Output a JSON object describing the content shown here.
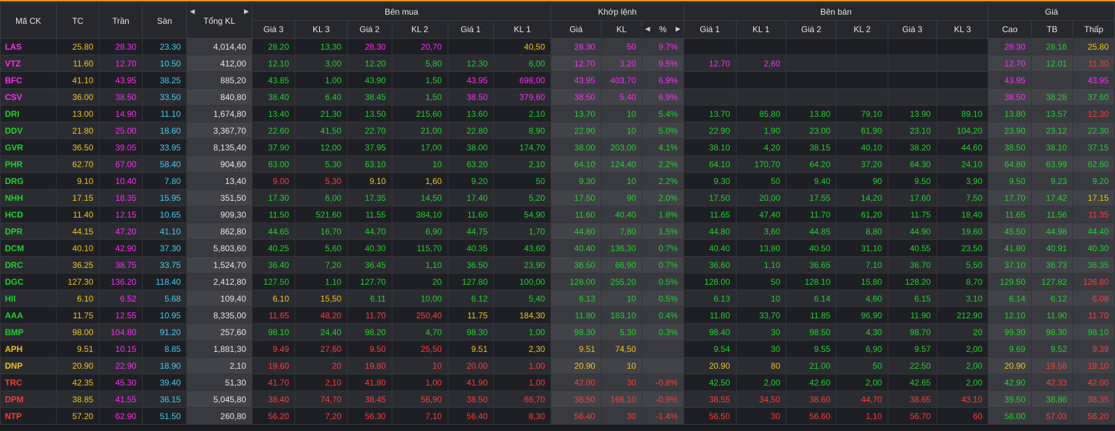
{
  "headers": {
    "symbol": "Mã CK",
    "ref": "TC",
    "ceil": "Trần",
    "floor": "Sàn",
    "total_vol": "Tổng KL",
    "buy_group": "Bên mua",
    "match_group": "Khớp lệnh",
    "sell_group": "Bên bán",
    "price_group": "Giá",
    "buy": [
      "Giá 3",
      "KL 3",
      "Giá 2",
      "KL 2",
      "Giá 1",
      "KL 1"
    ],
    "match": [
      "Giá",
      "KL",
      "%"
    ],
    "sell": [
      "Giá 1",
      "KL 1",
      "Giá 2",
      "KL 2",
      "Giá 3",
      "KL 3"
    ],
    "price": [
      "Cao",
      "TB",
      "Thấp"
    ]
  },
  "colors": {
    "ref": "#f0c419",
    "ceil": "#ff2bf6",
    "floor": "#3fd0f0",
    "up": "#21d12d",
    "down": "#ff3b3b",
    "accent": "#f0931e"
  },
  "rows": [
    {
      "s": "LAS",
      "c": "ceil",
      "v": [
        "25.80",
        "28.30",
        "23.30",
        "4,014,40",
        "28.20",
        "13,30",
        "28.30",
        "20,70",
        "",
        "40,50",
        "28.30",
        "50",
        "9.7%",
        "",
        "",
        "",
        "",
        "",
        "",
        "28.30",
        "28.16",
        "25.80"
      ],
      "k": [
        "ref",
        "ceil",
        "floor",
        "",
        "up",
        "up",
        "ceil",
        "ceil",
        "",
        "ref",
        "ceil",
        "ceil",
        "ceil",
        "",
        "",
        "",
        "",
        "",
        "",
        "ceil",
        "up",
        "ref"
      ]
    },
    {
      "s": "VTZ",
      "c": "ceil",
      "v": [
        "11.60",
        "12.70",
        "10.50",
        "412,00",
        "12.10",
        "3,00",
        "12.20",
        "5,80",
        "12.30",
        "6,00",
        "12.70",
        "3,20",
        "9.5%",
        "12.70",
        "2,60",
        "",
        "",
        "",
        "",
        "12.70",
        "12.01",
        "11.30"
      ],
      "k": [
        "ref",
        "ceil",
        "floor",
        "",
        "up",
        "up",
        "up",
        "up",
        "up",
        "up",
        "ceil",
        "ceil",
        "ceil",
        "ceil",
        "ceil",
        "",
        "",
        "",
        "",
        "ceil",
        "up",
        "down"
      ]
    },
    {
      "s": "BFC",
      "c": "ceil",
      "v": [
        "41.10",
        "43.95",
        "38.25",
        "885,20",
        "43.85",
        "1,00",
        "43.90",
        "1,50",
        "43.95",
        "698,00",
        "43.95",
        "403,70",
        "6.9%",
        "",
        "",
        "",
        "",
        "",
        "",
        "43.95",
        "",
        "43.95"
      ],
      "k": [
        "ref",
        "ceil",
        "floor",
        "",
        "up",
        "up",
        "up",
        "up",
        "ceil",
        "ceil",
        "ceil",
        "ceil",
        "ceil",
        "",
        "",
        "",
        "",
        "",
        "",
        "ceil",
        "",
        "ceil"
      ]
    },
    {
      "s": "CSV",
      "c": "ceil",
      "v": [
        "36.00",
        "38.50",
        "33.50",
        "840,80",
        "38.40",
        "6,40",
        "38.45",
        "1,50",
        "38.50",
        "379,60",
        "38.50",
        "5,40",
        "6.9%",
        "",
        "",
        "",
        "",
        "",
        "",
        "38.50",
        "38.28",
        "37.60"
      ],
      "k": [
        "ref",
        "ceil",
        "floor",
        "",
        "up",
        "up",
        "up",
        "up",
        "ceil",
        "ceil",
        "ceil",
        "ceil",
        "ceil",
        "",
        "",
        "",
        "",
        "",
        "",
        "ceil",
        "up",
        "up"
      ]
    },
    {
      "s": "DRI",
      "c": "up",
      "v": [
        "13.00",
        "14.90",
        "11.10",
        "1,674,80",
        "13.40",
        "21,30",
        "13.50",
        "215,60",
        "13.60",
        "2,10",
        "13.70",
        "10",
        "5.4%",
        "13.70",
        "85,80",
        "13.80",
        "79,10",
        "13.90",
        "89,10",
        "13.80",
        "13.57",
        "12.30"
      ],
      "k": [
        "ref",
        "ceil",
        "floor",
        "",
        "up",
        "up",
        "up",
        "up",
        "up",
        "up",
        "up",
        "up",
        "up",
        "up",
        "up",
        "up",
        "up",
        "up",
        "up",
        "up",
        "up",
        "down"
      ]
    },
    {
      "s": "DDV",
      "c": "up",
      "v": [
        "21.80",
        "25.00",
        "18.60",
        "3,367,70",
        "22.60",
        "41,50",
        "22.70",
        "21,00",
        "22.80",
        "8,90",
        "22.90",
        "10",
        "5.0%",
        "22.90",
        "1,90",
        "23.00",
        "61,90",
        "23.10",
        "104,20",
        "23.90",
        "23.12",
        "22.30"
      ],
      "k": [
        "ref",
        "ceil",
        "floor",
        "",
        "up",
        "up",
        "up",
        "up",
        "up",
        "up",
        "up",
        "up",
        "up",
        "up",
        "up",
        "up",
        "up",
        "up",
        "up",
        "up",
        "up",
        "up"
      ]
    },
    {
      "s": "GVR",
      "c": "up",
      "v": [
        "36.50",
        "39.05",
        "33.95",
        "8,135,40",
        "37.90",
        "12,00",
        "37.95",
        "17,00",
        "38.00",
        "174,70",
        "38.00",
        "203,00",
        "4.1%",
        "38.10",
        "4,20",
        "38.15",
        "40,10",
        "38.20",
        "44,60",
        "38.50",
        "38.10",
        "37.15"
      ],
      "k": [
        "ref",
        "ceil",
        "floor",
        "",
        "up",
        "up",
        "up",
        "up",
        "up",
        "up",
        "up",
        "up",
        "up",
        "up",
        "up",
        "up",
        "up",
        "up",
        "up",
        "up",
        "up",
        "up"
      ]
    },
    {
      "s": "PHR",
      "c": "up",
      "v": [
        "62.70",
        "67.00",
        "58.40",
        "904,60",
        "63.00",
        "5,30",
        "63.10",
        "10",
        "63.20",
        "2,10",
        "64.10",
        "124,40",
        "2.2%",
        "64.10",
        "170,70",
        "64.20",
        "37,20",
        "64.30",
        "24,10",
        "64.80",
        "63.99",
        "62.80"
      ],
      "k": [
        "ref",
        "ceil",
        "floor",
        "",
        "up",
        "up",
        "up",
        "up",
        "up",
        "up",
        "up",
        "up",
        "up",
        "up",
        "up",
        "up",
        "up",
        "up",
        "up",
        "up",
        "up",
        "up"
      ]
    },
    {
      "s": "DRG",
      "c": "up",
      "v": [
        "9.10",
        "10.40",
        "7.80",
        "13,40",
        "9.00",
        "5,30",
        "9.10",
        "1,60",
        "9.20",
        "50",
        "9.30",
        "10",
        "2.2%",
        "9.30",
        "50",
        "9.40",
        "90",
        "9.50",
        "3,90",
        "9.50",
        "9.23",
        "9.20"
      ],
      "k": [
        "ref",
        "ceil",
        "floor",
        "",
        "down",
        "down",
        "ref",
        "ref",
        "up",
        "up",
        "up",
        "up",
        "up",
        "up",
        "up",
        "up",
        "up",
        "up",
        "up",
        "up",
        "up",
        "up"
      ]
    },
    {
      "s": "NHH",
      "c": "up",
      "v": [
        "17.15",
        "18.35",
        "15.95",
        "351,50",
        "17.30",
        "6,00",
        "17.35",
        "14,50",
        "17.40",
        "5,20",
        "17.50",
        "90",
        "2.0%",
        "17.50",
        "20,00",
        "17.55",
        "14,20",
        "17.60",
        "7,50",
        "17.70",
        "17.42",
        "17.15"
      ],
      "k": [
        "ref",
        "ceil",
        "floor",
        "",
        "up",
        "up",
        "up",
        "up",
        "up",
        "up",
        "up",
        "up",
        "up",
        "up",
        "up",
        "up",
        "up",
        "up",
        "up",
        "up",
        "up",
        "ref"
      ]
    },
    {
      "s": "HCD",
      "c": "up",
      "v": [
        "11.40",
        "12.15",
        "10.65",
        "909,30",
        "11.50",
        "521,60",
        "11.55",
        "384,10",
        "11.60",
        "54,90",
        "11.60",
        "40,40",
        "1.8%",
        "11.65",
        "47,40",
        "11.70",
        "61,20",
        "11.75",
        "18,40",
        "11.65",
        "11.56",
        "11.35"
      ],
      "k": [
        "ref",
        "ceil",
        "floor",
        "",
        "up",
        "up",
        "up",
        "up",
        "up",
        "up",
        "up",
        "up",
        "up",
        "up",
        "up",
        "up",
        "up",
        "up",
        "up",
        "up",
        "up",
        "down"
      ]
    },
    {
      "s": "DPR",
      "c": "up",
      "v": [
        "44.15",
        "47.20",
        "41.10",
        "862,80",
        "44.65",
        "16,70",
        "44.70",
        "6,90",
        "44.75",
        "1,70",
        "44.80",
        "7,80",
        "1.5%",
        "44.80",
        "3,60",
        "44.85",
        "8,80",
        "44.90",
        "19,60",
        "45.50",
        "44.98",
        "44.40"
      ],
      "k": [
        "ref",
        "ceil",
        "floor",
        "",
        "up",
        "up",
        "up",
        "up",
        "up",
        "up",
        "up",
        "up",
        "up",
        "up",
        "up",
        "up",
        "up",
        "up",
        "up",
        "up",
        "up",
        "up"
      ]
    },
    {
      "s": "DCM",
      "c": "up",
      "v": [
        "40.10",
        "42.90",
        "37.30",
        "5,803,60",
        "40.25",
        "5,60",
        "40.30",
        "115,70",
        "40.35",
        "43,60",
        "40.40",
        "136,30",
        "0.7%",
        "40.40",
        "13,80",
        "40.50",
        "31,10",
        "40.55",
        "23,50",
        "41.80",
        "40.91",
        "40.30"
      ],
      "k": [
        "ref",
        "ceil",
        "floor",
        "",
        "up",
        "up",
        "up",
        "up",
        "up",
        "up",
        "up",
        "up",
        "up",
        "up",
        "up",
        "up",
        "up",
        "up",
        "up",
        "up",
        "up",
        "up"
      ]
    },
    {
      "s": "DRC",
      "c": "up",
      "v": [
        "36.25",
        "38.75",
        "33.75",
        "1,524,70",
        "36.40",
        "7,20",
        "36.45",
        "1,10",
        "36.50",
        "23,90",
        "36.50",
        "66,90",
        "0.7%",
        "36.60",
        "1,10",
        "36.65",
        "7,10",
        "36.70",
        "5,50",
        "37.10",
        "36.73",
        "36.35"
      ],
      "k": [
        "ref",
        "ceil",
        "floor",
        "",
        "up",
        "up",
        "up",
        "up",
        "up",
        "up",
        "up",
        "up",
        "up",
        "up",
        "up",
        "up",
        "up",
        "up",
        "up",
        "up",
        "up",
        "up"
      ]
    },
    {
      "s": "DGC",
      "c": "up",
      "v": [
        "127.30",
        "136.20",
        "118.40",
        "2,412,80",
        "127.50",
        "1,10",
        "127.70",
        "20",
        "127.80",
        "100,00",
        "128.00",
        "255,20",
        "0.5%",
        "128.00",
        "50",
        "128.10",
        "15,80",
        "128.20",
        "8,70",
        "129.50",
        "127.82",
        "126.80"
      ],
      "k": [
        "ref",
        "ceil",
        "floor",
        "",
        "up",
        "up",
        "up",
        "up",
        "up",
        "up",
        "up",
        "up",
        "up",
        "up",
        "up",
        "up",
        "up",
        "up",
        "up",
        "up",
        "up",
        "down"
      ]
    },
    {
      "s": "HII",
      "c": "up",
      "v": [
        "6.10",
        "6.52",
        "5.68",
        "109,40",
        "6.10",
        "15,50",
        "6.11",
        "10,00",
        "6.12",
        "5,40",
        "6.13",
        "10",
        "0.5%",
        "6.13",
        "10",
        "6.14",
        "4,60",
        "6.15",
        "3,10",
        "6.14",
        "6.12",
        "6.08"
      ],
      "k": [
        "ref",
        "ceil",
        "floor",
        "",
        "ref",
        "ref",
        "up",
        "up",
        "up",
        "up",
        "up",
        "up",
        "up",
        "up",
        "up",
        "up",
        "up",
        "up",
        "up",
        "up",
        "up",
        "down"
      ]
    },
    {
      "s": "AAA",
      "c": "up",
      "v": [
        "11.75",
        "12.55",
        "10.95",
        "8,335,00",
        "11.65",
        "48,20",
        "11.70",
        "250,40",
        "11.75",
        "184,30",
        "11.80",
        "183,10",
        "0.4%",
        "11.80",
        "33,70",
        "11.85",
        "96,90",
        "11.90",
        "212,90",
        "12.10",
        "11.90",
        "11.70"
      ],
      "k": [
        "ref",
        "ceil",
        "floor",
        "",
        "down",
        "down",
        "down",
        "down",
        "ref",
        "ref",
        "up",
        "up",
        "up",
        "up",
        "up",
        "up",
        "up",
        "up",
        "up",
        "up",
        "up",
        "down"
      ]
    },
    {
      "s": "BMP",
      "c": "up",
      "v": [
        "98.00",
        "104.80",
        "91.20",
        "257,60",
        "98.10",
        "24,40",
        "98.20",
        "4,70",
        "98.30",
        "1,00",
        "98.30",
        "5,30",
        "0.3%",
        "98.40",
        "30",
        "98.50",
        "4,30",
        "98.70",
        "20",
        "99.30",
        "98.30",
        "98.10"
      ],
      "k": [
        "ref",
        "ceil",
        "floor",
        "",
        "up",
        "up",
        "up",
        "up",
        "up",
        "up",
        "up",
        "up",
        "up",
        "up",
        "up",
        "up",
        "up",
        "up",
        "up",
        "up",
        "up",
        "up"
      ]
    },
    {
      "s": "APH",
      "c": "ref",
      "v": [
        "9.51",
        "10.15",
        "8.85",
        "1,881,30",
        "9.49",
        "27,60",
        "9.50",
        "25,50",
        "9.51",
        "2,30",
        "9.51",
        "74,50",
        "",
        "9.54",
        "30",
        "9.55",
        "6,90",
        "9.57",
        "2,00",
        "9.69",
        "9.52",
        "9.39"
      ],
      "k": [
        "ref",
        "ceil",
        "floor",
        "",
        "down",
        "down",
        "down",
        "down",
        "ref",
        "ref",
        "ref",
        "ref",
        "",
        "up",
        "up",
        "up",
        "up",
        "up",
        "up",
        "up",
        "up",
        "down"
      ]
    },
    {
      "s": "DNP",
      "c": "ref",
      "v": [
        "20.90",
        "22.90",
        "18.90",
        "2,10",
        "19.60",
        "20",
        "19.80",
        "10",
        "20.00",
        "1,00",
        "20.90",
        "10",
        "",
        "20.90",
        "80",
        "21.00",
        "50",
        "22.50",
        "2,00",
        "20.90",
        "19.56",
        "19.10"
      ],
      "k": [
        "ref",
        "ceil",
        "floor",
        "",
        "down",
        "down",
        "down",
        "down",
        "down",
        "down",
        "ref",
        "ref",
        "",
        "ref",
        "ref",
        "up",
        "up",
        "up",
        "up",
        "ref",
        "down",
        "down"
      ]
    },
    {
      "s": "TRC",
      "c": "down",
      "v": [
        "42.35",
        "45.30",
        "39.40",
        "51,30",
        "41.70",
        "2,10",
        "41.80",
        "1,00",
        "41.90",
        "1,00",
        "42.00",
        "30",
        "-0.8%",
        "42.50",
        "2,00",
        "42.60",
        "2,00",
        "42.65",
        "2,00",
        "42.90",
        "42.33",
        "42.00"
      ],
      "k": [
        "ref",
        "ceil",
        "floor",
        "",
        "down",
        "down",
        "down",
        "down",
        "down",
        "down",
        "down",
        "down",
        "down",
        "up",
        "up",
        "up",
        "up",
        "up",
        "up",
        "up",
        "down",
        "down"
      ]
    },
    {
      "s": "DPM",
      "c": "down",
      "v": [
        "38.85",
        "41.55",
        "36.15",
        "5,045,80",
        "38.40",
        "74,70",
        "38.45",
        "56,90",
        "38.50",
        "66,70",
        "38.50",
        "166,10",
        "-0.9%",
        "38.55",
        "34,50",
        "38.60",
        "44,70",
        "38.65",
        "43,10",
        "39.50",
        "38.86",
        "38.35"
      ],
      "k": [
        "ref",
        "ceil",
        "floor",
        "",
        "down",
        "down",
        "down",
        "down",
        "down",
        "down",
        "down",
        "down",
        "down",
        "down",
        "down",
        "down",
        "down",
        "down",
        "down",
        "up",
        "up",
        "down"
      ]
    },
    {
      "s": "NTP",
      "c": "down",
      "v": [
        "57.20",
        "62.90",
        "51.50",
        "260,80",
        "56.20",
        "7,20",
        "56.30",
        "7,10",
        "56.40",
        "8,30",
        "56.40",
        "30",
        "-1.4%",
        "56.50",
        "30",
        "56.60",
        "1,10",
        "56.70",
        "60",
        "58.00",
        "57.03",
        "56.20"
      ],
      "k": [
        "ref",
        "ceil",
        "floor",
        "",
        "down",
        "down",
        "down",
        "down",
        "down",
        "down",
        "down",
        "down",
        "down",
        "down",
        "down",
        "down",
        "down",
        "down",
        "down",
        "up",
        "down",
        "down"
      ]
    }
  ]
}
